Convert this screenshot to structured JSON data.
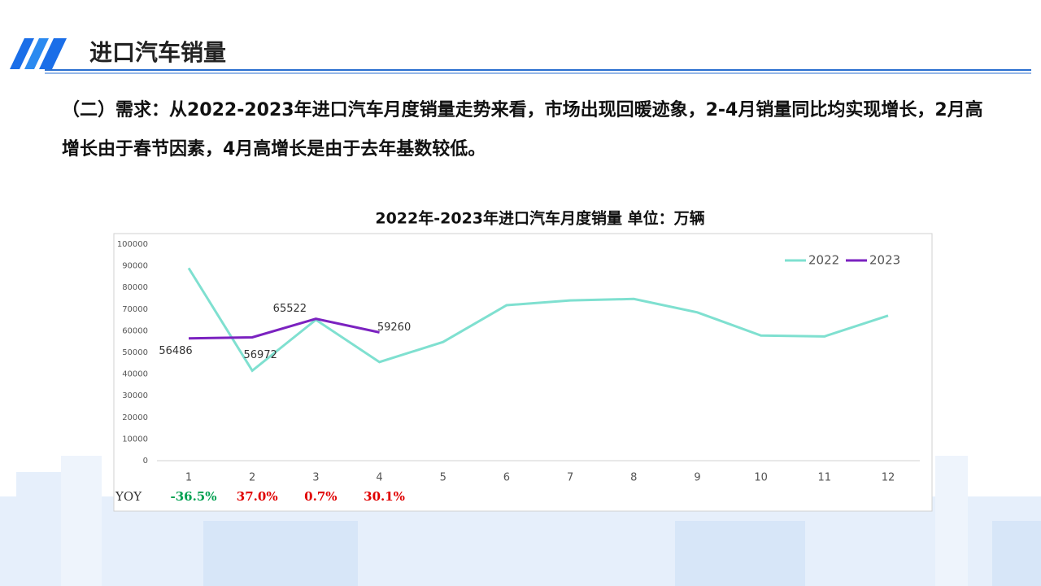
{
  "header": {
    "title": "进口汽车销量"
  },
  "paragraph": "（二）需求：从2022-2023年进口汽车月度销量走势来看，市场出现回暖迹象，2-4月销量同比均实现增长，2月高增长由于春节因素，4月高增长是由于去年基数较低。",
  "chart_data": {
    "type": "line",
    "title": "2022年-2023年进口汽车月度销量 单位：万辆",
    "categories": [
      "1",
      "2",
      "3",
      "4",
      "5",
      "6",
      "7",
      "8",
      "9",
      "10",
      "11",
      "12"
    ],
    "series": [
      {
        "name": "2022",
        "color": "#7fe0d0",
        "values": [
          88955,
          41585,
          65066,
          45550,
          54800,
          71800,
          74000,
          74700,
          68500,
          57800,
          57400,
          67000
        ]
      },
      {
        "name": "2023",
        "color": "#7b22c0",
        "values": [
          56486,
          56972,
          65522,
          59260,
          null,
          null,
          null,
          null,
          null,
          null,
          null,
          null
        ],
        "show_value_labels": true
      }
    ],
    "ylim": [
      0,
      100000
    ],
    "yticks": [
      0,
      10000,
      20000,
      30000,
      40000,
      50000,
      60000,
      70000,
      80000,
      90000,
      100000
    ],
    "legend": "top-right",
    "yoy": {
      "label": "YOY",
      "values": [
        -36.5,
        37.0,
        0.7,
        30.1
      ],
      "value_labels": [
        "-36.5%",
        "37.0%",
        "0.7%",
        "30.1%"
      ],
      "positive_color": "#e00000",
      "negative_color": "#00a050"
    }
  }
}
